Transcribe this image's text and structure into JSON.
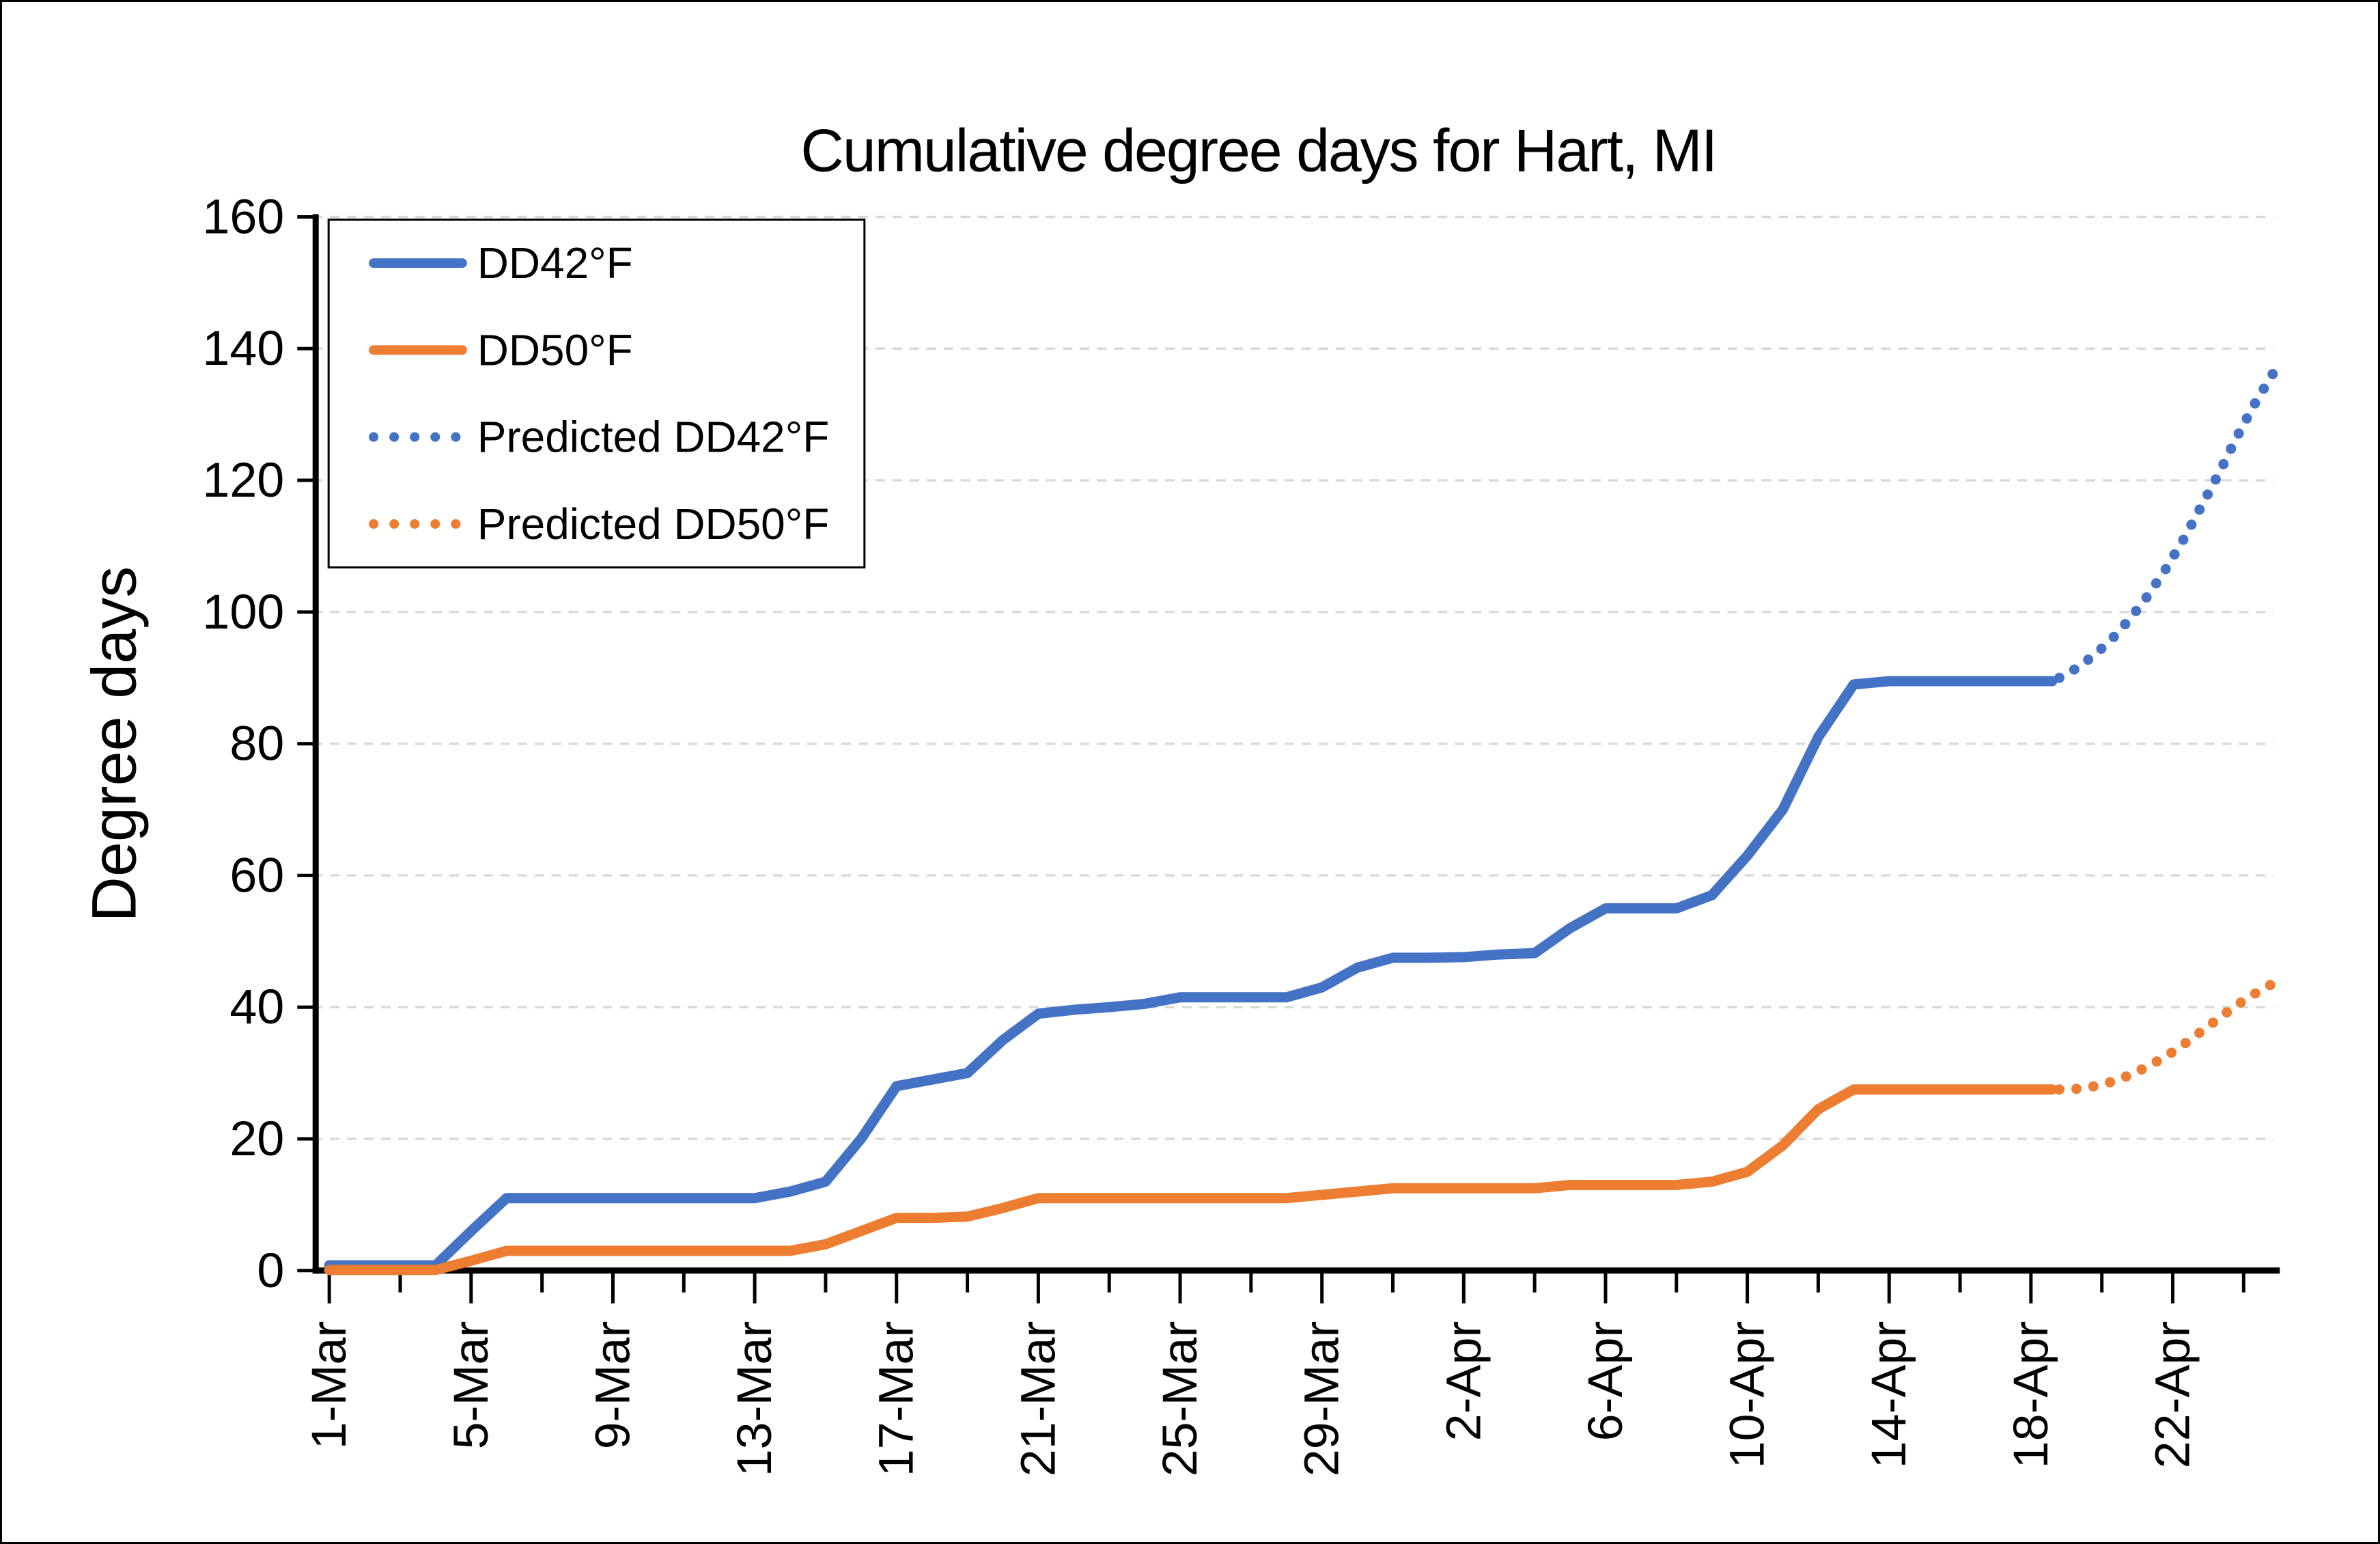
{
  "title": "Cumulative degree days for Hart, MI",
  "y_axis": {
    "label": "Degree days",
    "ticks": [
      0,
      20,
      40,
      60,
      80,
      100,
      120,
      140,
      160
    ],
    "min": 0,
    "max": 160
  },
  "x_axis": {
    "labels": [
      {
        "day": 0,
        "text": "1-Mar"
      },
      {
        "day": 4,
        "text": "5-Mar"
      },
      {
        "day": 8,
        "text": "9-Mar"
      },
      {
        "day": 12,
        "text": "13-Mar"
      },
      {
        "day": 16,
        "text": "17-Mar"
      },
      {
        "day": 20,
        "text": "21-Mar"
      },
      {
        "day": 24,
        "text": "25-Mar"
      },
      {
        "day": 28,
        "text": "29-Mar"
      },
      {
        "day": 32,
        "text": "2-Apr"
      },
      {
        "day": 36,
        "text": "6-Apr"
      },
      {
        "day": 40,
        "text": "10-Apr"
      },
      {
        "day": 44,
        "text": "14-Apr"
      },
      {
        "day": 48,
        "text": "18-Apr"
      },
      {
        "day": 52,
        "text": "22-Apr"
      }
    ],
    "minor_tick_every_days": 2,
    "last_tick_day": 54
  },
  "colors": {
    "dd42": "#4472C4",
    "dd50": "#ED7D31",
    "gridline": "#D9D9D9",
    "axis": "#000000",
    "background": "#FFFFFF"
  },
  "chart_data": {
    "type": "line",
    "title": "Cumulative degree days for Hart, MI",
    "xlabel": "",
    "ylabel": "Degree days",
    "ylim": [
      0,
      160
    ],
    "x_unit": "days since 1-Mar",
    "grid": "horizontal-dashed",
    "legend_position": "top-left-inside",
    "series": [
      {
        "name": "DD42°F",
        "color": "#4472C4",
        "style": "solid",
        "points": [
          [
            0,
            0.8
          ],
          [
            1,
            0.8
          ],
          [
            2,
            0.8
          ],
          [
            3,
            0.8
          ],
          [
            4,
            6
          ],
          [
            5,
            11
          ],
          [
            6,
            11
          ],
          [
            7,
            11
          ],
          [
            8,
            11
          ],
          [
            9,
            11
          ],
          [
            10,
            11
          ],
          [
            11,
            11
          ],
          [
            12,
            11
          ],
          [
            13,
            12
          ],
          [
            14,
            13.5
          ],
          [
            15,
            20
          ],
          [
            16,
            28
          ],
          [
            17,
            29
          ],
          [
            18,
            30
          ],
          [
            19,
            35
          ],
          [
            20,
            39
          ],
          [
            21,
            39.6
          ],
          [
            22,
            40
          ],
          [
            23,
            40.5
          ],
          [
            24,
            41.5
          ],
          [
            25,
            41.5
          ],
          [
            26,
            41.5
          ],
          [
            27,
            41.5
          ],
          [
            28,
            43
          ],
          [
            29,
            46
          ],
          [
            30,
            47.5
          ],
          [
            31,
            47.5
          ],
          [
            32,
            47.6
          ],
          [
            33,
            48
          ],
          [
            34,
            48.2
          ],
          [
            35,
            52
          ],
          [
            36,
            55
          ],
          [
            37,
            55
          ],
          [
            38,
            55
          ],
          [
            39,
            57
          ],
          [
            40,
            63
          ],
          [
            41,
            70
          ],
          [
            42,
            81
          ],
          [
            43,
            89
          ],
          [
            44,
            89.5
          ],
          [
            45,
            89.5
          ],
          [
            46,
            89.5
          ],
          [
            47,
            89.5
          ],
          [
            48,
            89.5
          ],
          [
            48.6,
            89.5
          ]
        ]
      },
      {
        "name": "DD50°F",
        "color": "#ED7D31",
        "style": "solid",
        "points": [
          [
            0,
            0.1
          ],
          [
            1,
            0.1
          ],
          [
            2,
            0.1
          ],
          [
            3,
            0.1
          ],
          [
            4,
            1.5
          ],
          [
            5,
            3
          ],
          [
            6,
            3
          ],
          [
            7,
            3
          ],
          [
            8,
            3
          ],
          [
            9,
            3
          ],
          [
            10,
            3
          ],
          [
            11,
            3
          ],
          [
            12,
            3
          ],
          [
            13,
            3
          ],
          [
            14,
            4
          ],
          [
            15,
            6
          ],
          [
            16,
            8
          ],
          [
            17,
            8
          ],
          [
            18,
            8.2
          ],
          [
            19,
            9.5
          ],
          [
            20,
            11
          ],
          [
            21,
            11
          ],
          [
            22,
            11
          ],
          [
            23,
            11
          ],
          [
            24,
            11
          ],
          [
            25,
            11
          ],
          [
            26,
            11
          ],
          [
            27,
            11
          ],
          [
            28,
            11.5
          ],
          [
            29,
            12
          ],
          [
            30,
            12.5
          ],
          [
            31,
            12.5
          ],
          [
            32,
            12.5
          ],
          [
            33,
            12.5
          ],
          [
            34,
            12.5
          ],
          [
            35,
            13
          ],
          [
            36,
            13
          ],
          [
            37,
            13
          ],
          [
            38,
            13
          ],
          [
            39,
            13.5
          ],
          [
            40,
            15
          ],
          [
            41,
            19
          ],
          [
            42,
            24.5
          ],
          [
            43,
            27.5
          ],
          [
            44,
            27.5
          ],
          [
            45,
            27.5
          ],
          [
            46,
            27.5
          ],
          [
            47,
            27.5
          ],
          [
            48,
            27.5
          ],
          [
            48.6,
            27.5
          ]
        ]
      },
      {
        "name": "Predicted DD42°F",
        "color": "#4472C4",
        "style": "dotted",
        "points": [
          [
            48.8,
            90
          ],
          [
            49.3,
            91.5
          ],
          [
            49.8,
            93.5
          ],
          [
            50.3,
            96
          ],
          [
            50.8,
            99
          ],
          [
            51.3,
            102.5
          ],
          [
            51.8,
            106.5
          ],
          [
            52.3,
            111
          ],
          [
            52.8,
            116
          ],
          [
            53.3,
            121
          ],
          [
            53.8,
            126.5
          ],
          [
            54.3,
            131.5
          ],
          [
            54.8,
            136
          ],
          [
            55,
            137.5
          ]
        ]
      },
      {
        "name": "Predicted DD50°F",
        "color": "#ED7D31",
        "style": "dotted",
        "points": [
          [
            48.8,
            27.5
          ],
          [
            49.3,
            27.6
          ],
          [
            49.8,
            28
          ],
          [
            50.3,
            28.7
          ],
          [
            50.8,
            29.7
          ],
          [
            51.3,
            31
          ],
          [
            51.8,
            32.5
          ],
          [
            52.3,
            34.3
          ],
          [
            52.8,
            36.3
          ],
          [
            53.3,
            38.3
          ],
          [
            53.8,
            40.3
          ],
          [
            54.3,
            42
          ],
          [
            54.8,
            43.5
          ],
          [
            55,
            44
          ]
        ]
      }
    ]
  }
}
